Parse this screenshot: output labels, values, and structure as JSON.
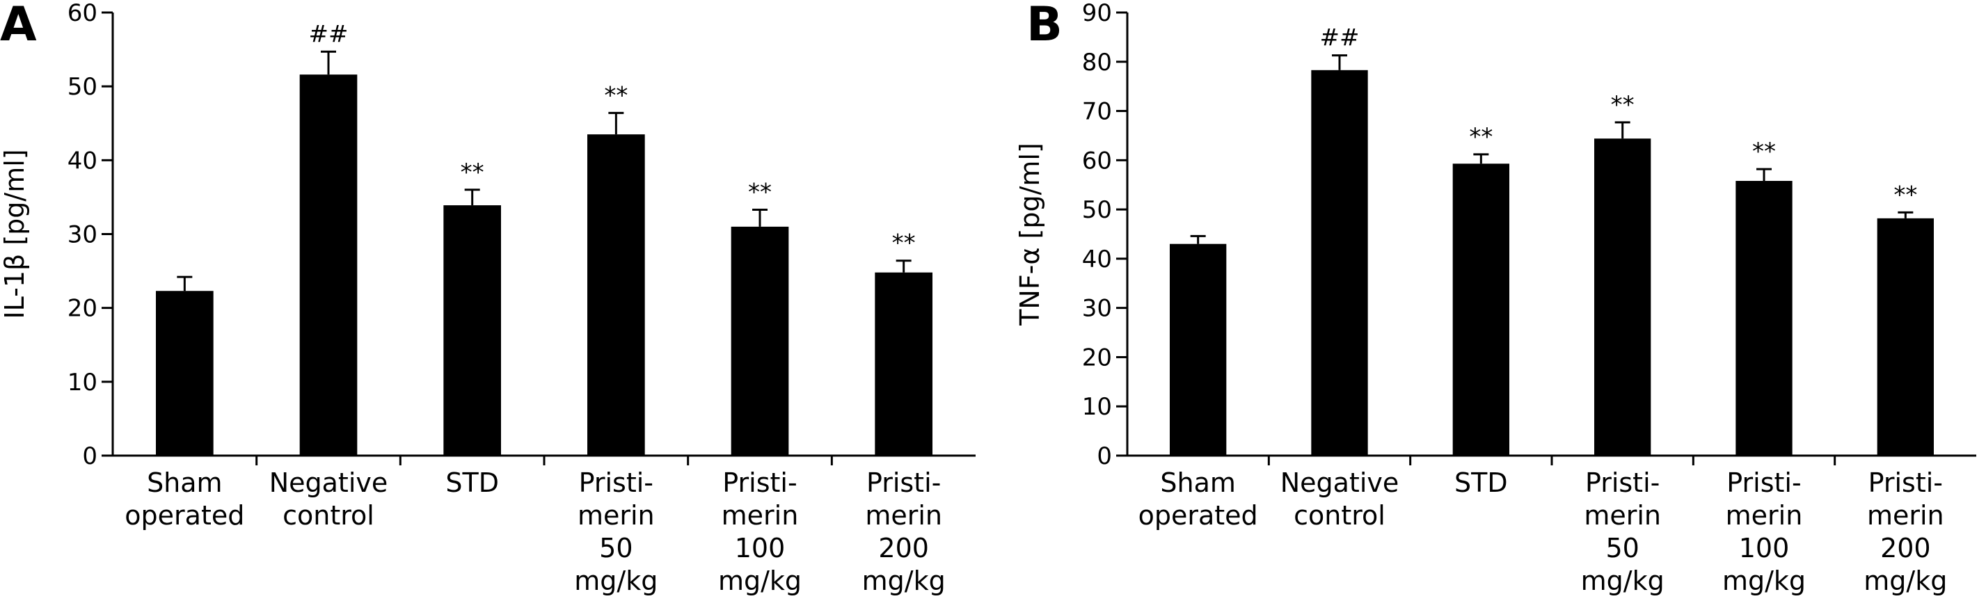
{
  "chart_data": [
    {
      "type": "bar",
      "panel_label": "A",
      "ylabel": "IL-1β [pg/ml]",
      "xlabel": "",
      "ylim": [
        0,
        60
      ],
      "yticks": [
        0,
        10,
        20,
        30,
        40,
        50,
        60
      ],
      "categories": [
        [
          "Sham",
          "operated"
        ],
        [
          "Negative",
          "control"
        ],
        [
          "STD"
        ],
        [
          "Pristi-",
          "merin",
          "50",
          "mg/kg"
        ],
        [
          "Pristi-",
          "merin",
          "100",
          "mg/kg"
        ],
        [
          "Pristi-",
          "merin",
          "200",
          "mg/kg"
        ]
      ],
      "values": [
        22.3,
        51.6,
        33.9,
        43.5,
        31.0,
        24.8
      ],
      "errors": [
        1.9,
        3.1,
        2.1,
        2.9,
        2.3,
        1.6
      ],
      "annotations": [
        "",
        "##",
        "**",
        "**",
        "**",
        "**"
      ],
      "bar_color": "#000000",
      "grid": false
    },
    {
      "type": "bar",
      "panel_label": "B",
      "ylabel": "TNF-α [pg/ml]",
      "xlabel": "",
      "ylim": [
        0,
        90
      ],
      "yticks": [
        0,
        10,
        20,
        30,
        40,
        50,
        60,
        70,
        80,
        90
      ],
      "categories": [
        [
          "Sham",
          "operated"
        ],
        [
          "Negative",
          "control"
        ],
        [
          "STD"
        ],
        [
          "Pristi-",
          "merin",
          "50",
          "mg/kg"
        ],
        [
          "Pristi-",
          "merin",
          "100",
          "mg/kg"
        ],
        [
          "Pristi-",
          "merin",
          "200",
          "mg/kg"
        ]
      ],
      "values": [
        43.0,
        78.3,
        59.3,
        64.4,
        55.8,
        48.2
      ],
      "errors": [
        1.6,
        3.0,
        1.9,
        3.3,
        2.4,
        1.2
      ],
      "annotations": [
        "",
        "##",
        "**",
        "**",
        "**",
        "**"
      ],
      "bar_color": "#000000",
      "grid": false
    }
  ]
}
